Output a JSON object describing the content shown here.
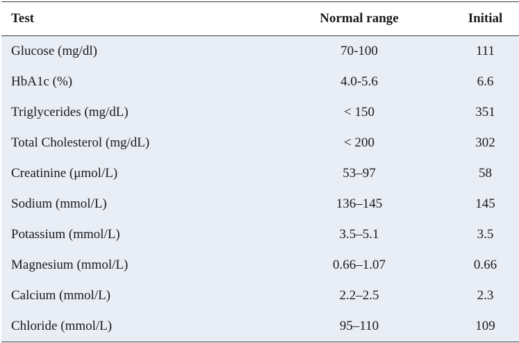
{
  "table": {
    "headers": {
      "test": "Test",
      "range": "Normal range",
      "initial": "Initial"
    },
    "rows": [
      {
        "test": "Glucose (mg/dl)",
        "range": "70-100",
        "initial": "111"
      },
      {
        "test": "HbA1c (%)",
        "range": "4.0-5.6",
        "initial": "6.6"
      },
      {
        "test": "Triglycerides (mg/dL)",
        "range": "< 150",
        "initial": "351"
      },
      {
        "test": "Total Cholesterol (mg/dL)",
        "range": "< 200",
        "initial": "302"
      },
      {
        "test": "Creatinine (μmol/L)",
        "range": "53–97",
        "initial": "58"
      },
      {
        "test": "Sodium (mmol/L)",
        "range": "136–145",
        "initial": "145"
      },
      {
        "test": "Potassium (mmol/L)",
        "range": "3.5–5.1",
        "initial": "3.5"
      },
      {
        "test": "Magnesium (mmol/L)",
        "range": "0.66–1.07",
        "initial": "0.66"
      },
      {
        "test": "Calcium (mmol/L)",
        "range": "2.2–2.5",
        "initial": "2.3"
      },
      {
        "test": "Chloride (mmol/L)",
        "range": "95–110",
        "initial": "109"
      }
    ]
  }
}
